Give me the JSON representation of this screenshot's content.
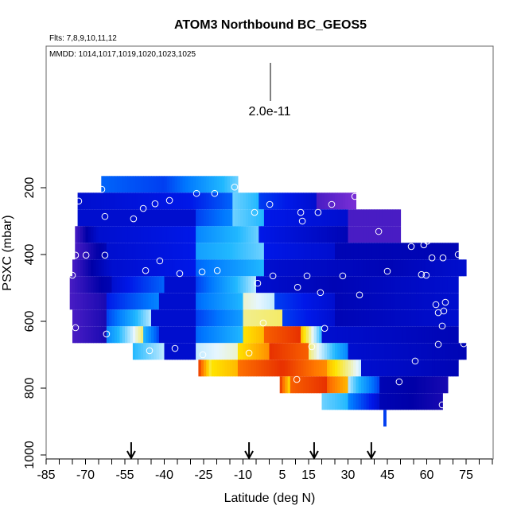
{
  "chart_data": {
    "type": "heatmap",
    "title": "ATOM3 Northbound BC_GEOS5",
    "flights_note": "Flts: 7,8,9,10,11,12",
    "dates_note": "MMDD: 1014,1017,1019,1020,1023,1025",
    "scale_label": "2.0e-11",
    "xlabel": "Latitude (deg N)",
    "ylabel": "PSXC (mbar)",
    "xlim": [
      -85,
      85
    ],
    "ylim_reversed": [
      1000,
      -224
    ],
    "x_ticks": [
      -85,
      -70,
      -55,
      -40,
      -25,
      -10,
      5,
      15,
      30,
      45,
      60,
      75
    ],
    "y_ticks": [
      200,
      400,
      600,
      800,
      1000
    ],
    "colormap": [
      "#7a2fd6",
      "#0000a8",
      "#0018e8",
      "#0078ff",
      "#20b8ff",
      "#e6f6ff",
      "#ffe400",
      "#ff7800",
      "#d80000"
    ],
    "value_note": "relative BC mixing ratio 0-1",
    "rows": [
      {
        "p": 190,
        "segments": [
          [
            -64,
            -40,
            0.35,
            0.3
          ],
          [
            -40,
            -12,
            0.3,
            0.55
          ]
        ]
      },
      {
        "p": 240,
        "segments": [
          [
            -73,
            -30,
            0.2,
            0.25
          ],
          [
            -30,
            -14,
            0.25,
            0.35
          ],
          [
            -14,
            -4,
            0.55,
            0.5
          ],
          [
            -4,
            18,
            0.3,
            0.2
          ],
          [
            18,
            33,
            0.05,
            0.0
          ]
        ]
      },
      {
        "p": 290,
        "segments": [
          [
            -73,
            -28,
            0.2,
            0.2
          ],
          [
            -28,
            -14,
            0.3,
            0.4
          ],
          [
            -14,
            -2,
            0.55,
            0.5
          ],
          [
            -2,
            30,
            0.25,
            0.2
          ],
          [
            30,
            50,
            0.05,
            0.05
          ]
        ]
      },
      {
        "p": 340,
        "segments": [
          [
            -74,
            -65,
            0.05,
            0.2
          ],
          [
            -65,
            -28,
            0.2,
            0.25
          ],
          [
            -28,
            -4,
            0.4,
            0.55
          ],
          [
            -4,
            30,
            0.25,
            0.15
          ],
          [
            30,
            50,
            0.05,
            0.05
          ]
        ]
      },
      {
        "p": 390,
        "segments": [
          [
            -74,
            -62,
            0.05,
            0.15
          ],
          [
            -62,
            -28,
            0.2,
            0.25
          ],
          [
            -28,
            -2,
            0.45,
            0.55
          ],
          [
            -2,
            25,
            0.25,
            0.2
          ],
          [
            25,
            72,
            0.15,
            0.15
          ]
        ]
      },
      {
        "p": 440,
        "segments": [
          [
            -75,
            -60,
            0.05,
            0.2
          ],
          [
            -60,
            -28,
            0.2,
            0.25
          ],
          [
            -28,
            -2,
            0.35,
            0.5
          ],
          [
            -2,
            45,
            0.2,
            0.15
          ],
          [
            45,
            75,
            0.15,
            0.2
          ]
        ]
      },
      {
        "p": 490,
        "segments": [
          [
            -76,
            -60,
            0.05,
            0.15
          ],
          [
            -60,
            -40,
            0.2,
            0.35
          ],
          [
            -40,
            -28,
            0.2,
            0.2
          ],
          [
            -28,
            -5,
            0.3,
            0.6
          ],
          [
            -5,
            25,
            0.2,
            0.15
          ],
          [
            25,
            72,
            0.15,
            0.2
          ]
        ]
      },
      {
        "p": 540,
        "segments": [
          [
            -76,
            -62,
            0.05,
            0.1
          ],
          [
            -62,
            -42,
            0.25,
            0.4
          ],
          [
            -42,
            -28,
            0.2,
            0.2
          ],
          [
            -28,
            -10,
            0.35,
            0.5
          ],
          [
            -10,
            2,
            0.65,
            0.6
          ],
          [
            2,
            25,
            0.3,
            0.2
          ],
          [
            25,
            72,
            0.15,
            0.2
          ]
        ]
      },
      {
        "p": 590,
        "segments": [
          [
            -75,
            -62,
            0.05,
            0.1
          ],
          [
            -62,
            -45,
            0.3,
            0.6
          ],
          [
            -45,
            -28,
            0.2,
            0.2
          ],
          [
            -28,
            -10,
            0.3,
            0.45
          ],
          [
            -10,
            5,
            0.68,
            0.7
          ],
          [
            5,
            25,
            0.3,
            0.2
          ],
          [
            25,
            72,
            0.15,
            0.2
          ]
        ]
      },
      {
        "p": 640,
        "segments": [
          [
            -75,
            -62,
            0.05,
            0.1
          ],
          [
            -62,
            -48,
            0.4,
            0.7
          ],
          [
            -48,
            -42,
            0.5,
            0.3
          ],
          [
            -42,
            -28,
            0.2,
            0.2
          ],
          [
            -28,
            -10,
            0.35,
            0.5
          ],
          [
            -10,
            -2,
            0.75,
            0.8
          ],
          [
            -2,
            12,
            0.9,
            0.95
          ],
          [
            12,
            20,
            0.8,
            0.5
          ],
          [
            20,
            72,
            0.2,
            0.15
          ]
        ]
      },
      {
        "p": 690,
        "segments": [
          [
            -52,
            -40,
            0.5,
            0.6
          ],
          [
            -40,
            -28,
            0.2,
            0.2
          ],
          [
            -28,
            -12,
            0.6,
            0.65
          ],
          [
            -12,
            0,
            0.75,
            0.85
          ],
          [
            0,
            15,
            0.95,
            0.9
          ],
          [
            15,
            30,
            0.7,
            0.4
          ],
          [
            30,
            75,
            0.2,
            0.15
          ]
        ]
      },
      {
        "p": 740,
        "segments": [
          [
            -27,
            -22,
            0.95,
            0.7
          ],
          [
            -22,
            -12,
            0.75,
            0.8
          ],
          [
            -12,
            5,
            0.88,
            0.95
          ],
          [
            5,
            22,
            0.95,
            0.85
          ],
          [
            22,
            35,
            0.8,
            0.6
          ],
          [
            35,
            72,
            0.2,
            0.15
          ]
        ]
      },
      {
        "p": 790,
        "segments": [
          [
            4,
            8,
            0.95,
            0.75
          ],
          [
            8,
            22,
            0.9,
            0.95
          ],
          [
            22,
            30,
            0.9,
            0.8
          ],
          [
            30,
            42,
            0.6,
            0.3
          ],
          [
            42,
            68,
            0.15,
            0.1
          ]
        ]
      },
      {
        "p": 840,
        "segments": [
          [
            20,
            30,
            0.55,
            0.5
          ],
          [
            30,
            42,
            0.4,
            0.2
          ],
          [
            42,
            66,
            0.15,
            0.1
          ]
        ]
      },
      {
        "p": 890,
        "segments": [
          [
            43.5,
            44.5,
            0.3,
            0.3
          ]
        ]
      }
    ],
    "observations": [
      [
        -63.8,
        205
      ],
      [
        -72.6,
        240
      ],
      [
        -62.6,
        286
      ],
      [
        -51.7,
        293
      ],
      [
        -48,
        262
      ],
      [
        -43.5,
        248
      ],
      [
        -38,
        238
      ],
      [
        -27.7,
        217
      ],
      [
        -20.8,
        217
      ],
      [
        -13.2,
        198
      ],
      [
        -5.6,
        274
      ],
      [
        0.2,
        250
      ],
      [
        12,
        274
      ],
      [
        12.6,
        300
      ],
      [
        18.6,
        274
      ],
      [
        23.8,
        250
      ],
      [
        32.6,
        226
      ],
      [
        41.7,
        331
      ],
      [
        54.1,
        376
      ],
      [
        58.9,
        371
      ],
      [
        60.2,
        360
      ],
      [
        67.4,
        329
      ],
      [
        72,
        400
      ],
      [
        62,
        410
      ],
      [
        66.2,
        410
      ],
      [
        -73.8,
        402
      ],
      [
        -69.8,
        402
      ],
      [
        -62.6,
        402
      ],
      [
        -41.7,
        419
      ],
      [
        -47.1,
        448
      ],
      [
        -34.1,
        457
      ],
      [
        -25.6,
        452
      ],
      [
        -19.8,
        448
      ],
      [
        -4.4,
        486
      ],
      [
        1.4,
        464
      ],
      [
        10.8,
        498
      ],
      [
        14.4,
        464
      ],
      [
        28,
        464
      ],
      [
        45,
        450
      ],
      [
        58,
        460
      ],
      [
        59.8,
        462
      ],
      [
        19.5,
        514
      ],
      [
        34.4,
        521
      ],
      [
        64.4,
        574
      ],
      [
        67.1,
        543
      ],
      [
        63.5,
        550
      ],
      [
        66.5,
        569
      ],
      [
        65.9,
        614
      ],
      [
        -73.8,
        619
      ],
      [
        -62,
        638
      ],
      [
        -45.6,
        688
      ],
      [
        -35.9,
        681
      ],
      [
        -25.3,
        700
      ],
      [
        -7.7,
        695
      ],
      [
        -2.3,
        605
      ],
      [
        16.2,
        676
      ],
      [
        21.1,
        621
      ],
      [
        10.5,
        774
      ],
      [
        64.4,
        669
      ],
      [
        74.1,
        667
      ],
      [
        55.6,
        719
      ],
      [
        49.5,
        781
      ],
      [
        65.9,
        850
      ],
      [
        -75,
        462
      ]
    ],
    "flight_arrows_lat": [
      -52.6,
      -7.7,
      17.1,
      38.9
    ]
  }
}
